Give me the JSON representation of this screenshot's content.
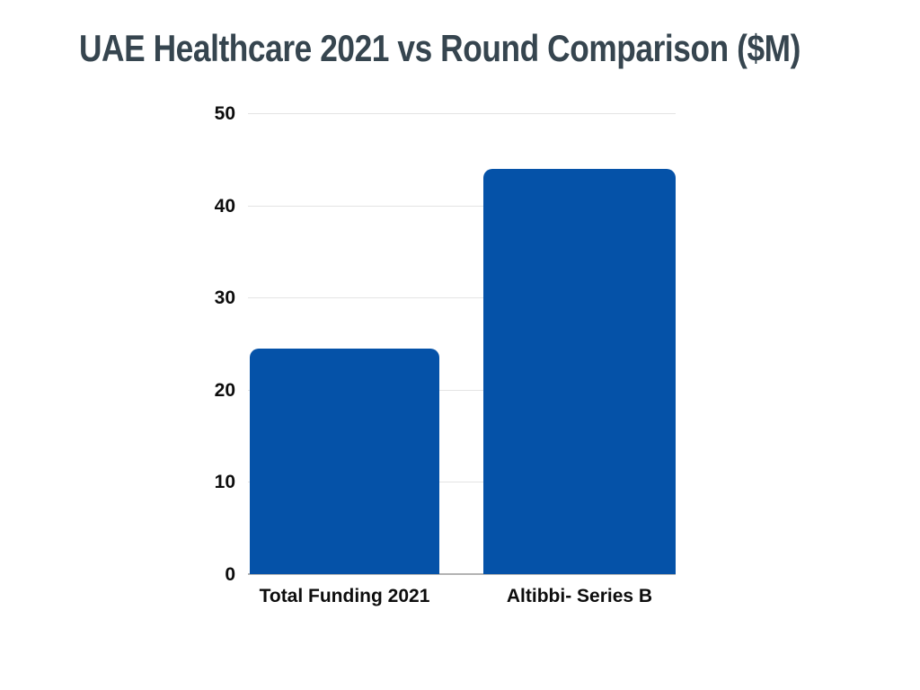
{
  "chart_data": {
    "type": "bar",
    "title": "UAE Healthcare 2021 vs Round Comparison ($M)",
    "categories": [
      "Total Funding 2021",
      "Altibbi- Series B"
    ],
    "values": [
      24.5,
      44
    ],
    "xlabel": "",
    "ylabel": "",
    "ylim": [
      0,
      50
    ],
    "yticks": [
      0,
      10,
      20,
      30,
      40,
      50
    ],
    "grid": true,
    "legend_position": "none",
    "bar_color": "#0552A8",
    "title_color": "#36454F",
    "gridline_color": "#e4e4e4",
    "baseline_color": "#b3b3b3",
    "tick_label_color": "#0d0d0d"
  }
}
